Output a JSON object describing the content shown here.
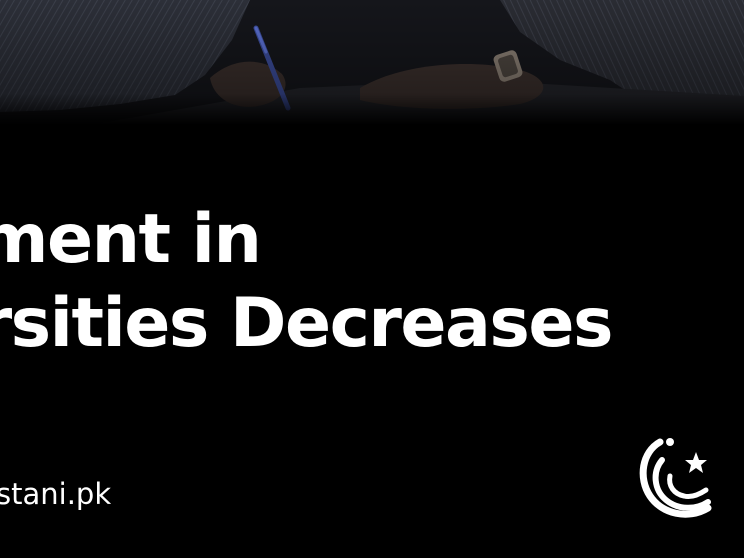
{
  "headline": {
    "lines": [
      "llment in",
      "ersities Decreases",
      "%"
    ]
  },
  "footer": {
    "url": "stani.pk"
  },
  "logo": {
    "icon": "crescent-star-icon",
    "color": "#ffffff"
  },
  "photo": {
    "description_icon": "photo-hands-writing"
  },
  "colors": {
    "background": "#000000",
    "text": "#ffffff"
  }
}
